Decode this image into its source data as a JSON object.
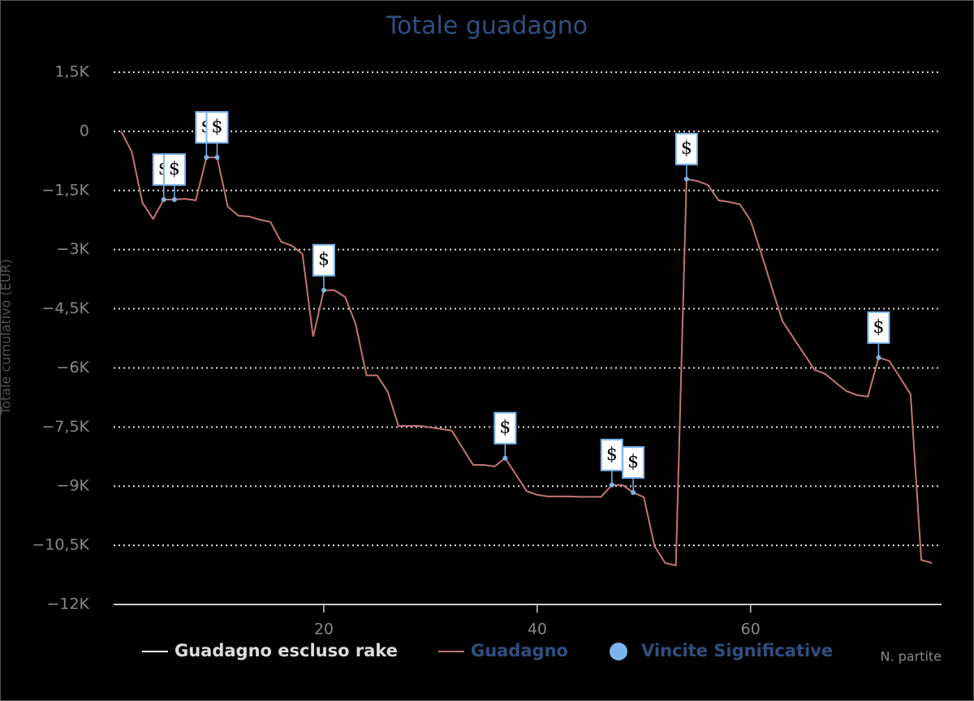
{
  "chart_data": {
    "type": "line",
    "title": "Totale guadagno",
    "y_axis_label": "Totale cumulativo (EUR)",
    "x_axis_label": "N. partite",
    "xlim": [
      0.3,
      77.9
    ],
    "xticks": [
      20,
      40,
      60
    ],
    "ylim": [
      -12000,
      1500
    ],
    "yticks": [
      {
        "value": 1500,
        "label": "1,5K"
      },
      0,
      {
        "value": -1500,
        "label": "−1,5K"
      },
      {
        "value": -3000,
        "label": "−3K"
      },
      {
        "value": -4500,
        "label": "−4,5K"
      },
      {
        "value": -6000,
        "label": "−6K"
      },
      {
        "value": -7500,
        "label": "−7,5K"
      },
      {
        "value": -9000,
        "label": "−9K"
      },
      {
        "value": -10500,
        "label": "−10,5K"
      },
      {
        "value": -12000,
        "label": "−12K"
      }
    ],
    "grid": true,
    "series": [
      {
        "name": "Guadagno escluso rake",
        "color": "#ffffff",
        "x": [],
        "values": []
      },
      {
        "name": "Guadagno",
        "color": "#c27474",
        "x": [
          1,
          2,
          3,
          4,
          5,
          6,
          7,
          8,
          9,
          10,
          11,
          12,
          13,
          14,
          15,
          16,
          17,
          18,
          19,
          20,
          21,
          22,
          23,
          24,
          25,
          26,
          27,
          28,
          29,
          30,
          31,
          32,
          33,
          34,
          35,
          36,
          37,
          38,
          39,
          40,
          41,
          42,
          43,
          44,
          45,
          46,
          47,
          48,
          49,
          50,
          51,
          52,
          53,
          54,
          55,
          56,
          57,
          58,
          59,
          60,
          61,
          62,
          63,
          64,
          65,
          66,
          67,
          68,
          69,
          70,
          71,
          72,
          73,
          74,
          75,
          76,
          77
        ],
        "values": [
          0,
          -515,
          -1810,
          -2220,
          -1730,
          -1730,
          -1710,
          -1750,
          -660,
          -660,
          -1910,
          -2140,
          -2160,
          -2240,
          -2300,
          -2800,
          -2900,
          -3110,
          -5210,
          -4030,
          -4030,
          -4200,
          -4900,
          -6190,
          -6190,
          -6610,
          -7470,
          -7470,
          -7470,
          -7510,
          -7550,
          -7590,
          -8030,
          -8460,
          -8460,
          -8500,
          -8290,
          -8700,
          -9120,
          -9220,
          -9260,
          -9260,
          -9260,
          -9270,
          -9270,
          -9270,
          -8970,
          -8970,
          -9160,
          -9280,
          -10520,
          -10950,
          -11010,
          -1210,
          -1260,
          -1360,
          -1750,
          -1790,
          -1850,
          -2260,
          -3090,
          -3970,
          -4820,
          -5230,
          -5640,
          -6050,
          -6150,
          -6380,
          -6590,
          -6690,
          -6730,
          -5740,
          -5820,
          -6240,
          -6670,
          -10870,
          -10950
        ]
      },
      {
        "name": "Vincite Significative",
        "color": "#7cb5ec",
        "flag": "$",
        "x": [
          5,
          6,
          9,
          10,
          20,
          37,
          47,
          49,
          54,
          72
        ],
        "values": [
          -1730,
          -1730,
          -660,
          -660,
          -4030,
          -8290,
          -8970,
          -9160,
          -1210,
          -5740
        ]
      }
    ]
  }
}
